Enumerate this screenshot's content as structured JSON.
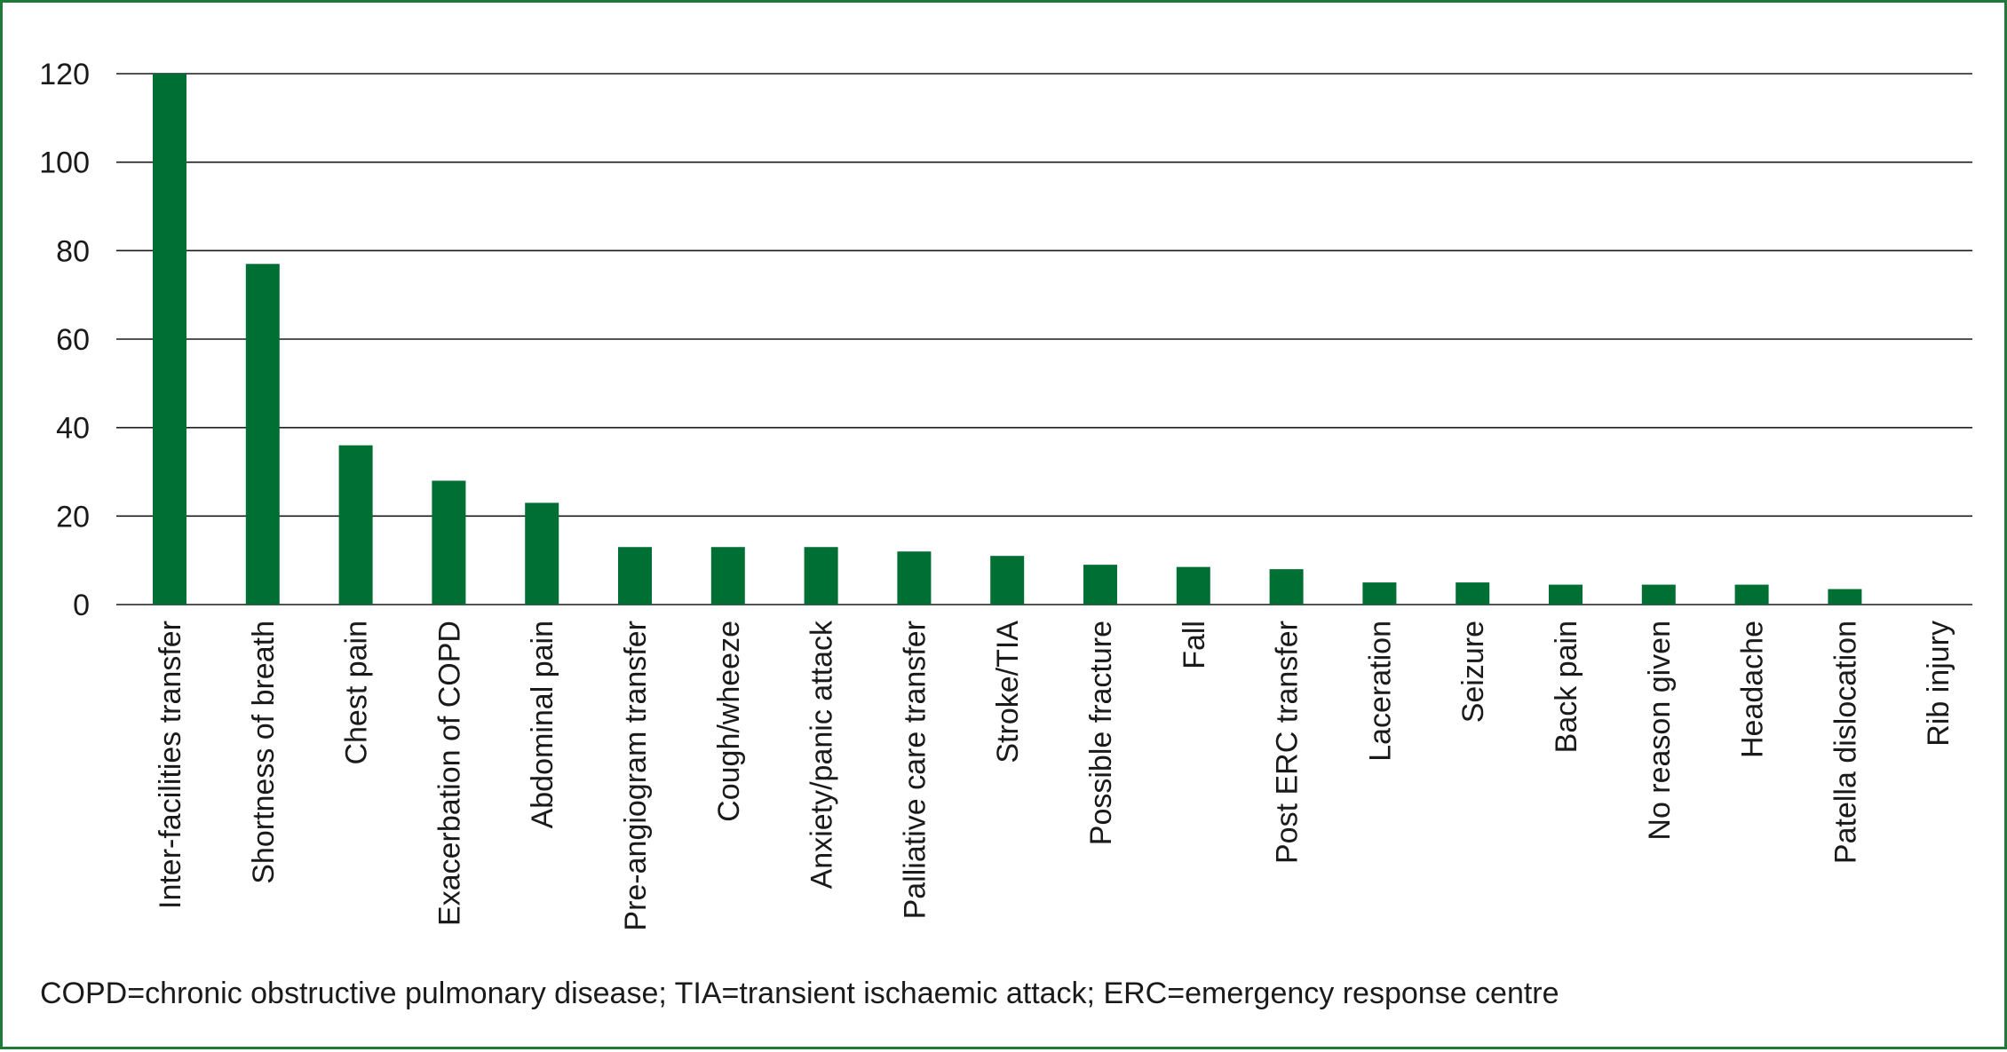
{
  "colors": {
    "bar": "#006f33",
    "grid": "#1a1a1a",
    "border": "#1f7a3a",
    "text": "#1a1a1a"
  },
  "chart_data": {
    "type": "bar",
    "title": "",
    "xlabel": "",
    "ylabel": "",
    "ylim": [
      0,
      120
    ],
    "yticks": [
      0,
      20,
      40,
      60,
      80,
      100,
      120
    ],
    "grid": true,
    "legend": "none",
    "categories": [
      "Inter-facilities transfer",
      "Shortness of breath",
      "Chest pain",
      "Exacerbation of COPD",
      "Abdominal pain",
      "Pre-angiogram transfer",
      "Cough/wheeze",
      "Anxiety/panic attack",
      "Palliative care transfer",
      "Stroke/TIA",
      "Possible fracture",
      "Fall",
      "Post ERC transfer",
      "Laceration",
      "Seizure",
      "Back pain",
      "No reason given",
      "Headache",
      "Patella dislocation",
      "Rib injury"
    ],
    "values": [
      120,
      77,
      36,
      28,
      23,
      13,
      13,
      13,
      12,
      11,
      9,
      8.5,
      8,
      5,
      5,
      4.5,
      4.5,
      4.5,
      3.5,
      0
    ]
  },
  "footnote": "COPD=chronic obstructive pulmonary disease; TIA=transient ischaemic attack; ERC=emergency response centre"
}
